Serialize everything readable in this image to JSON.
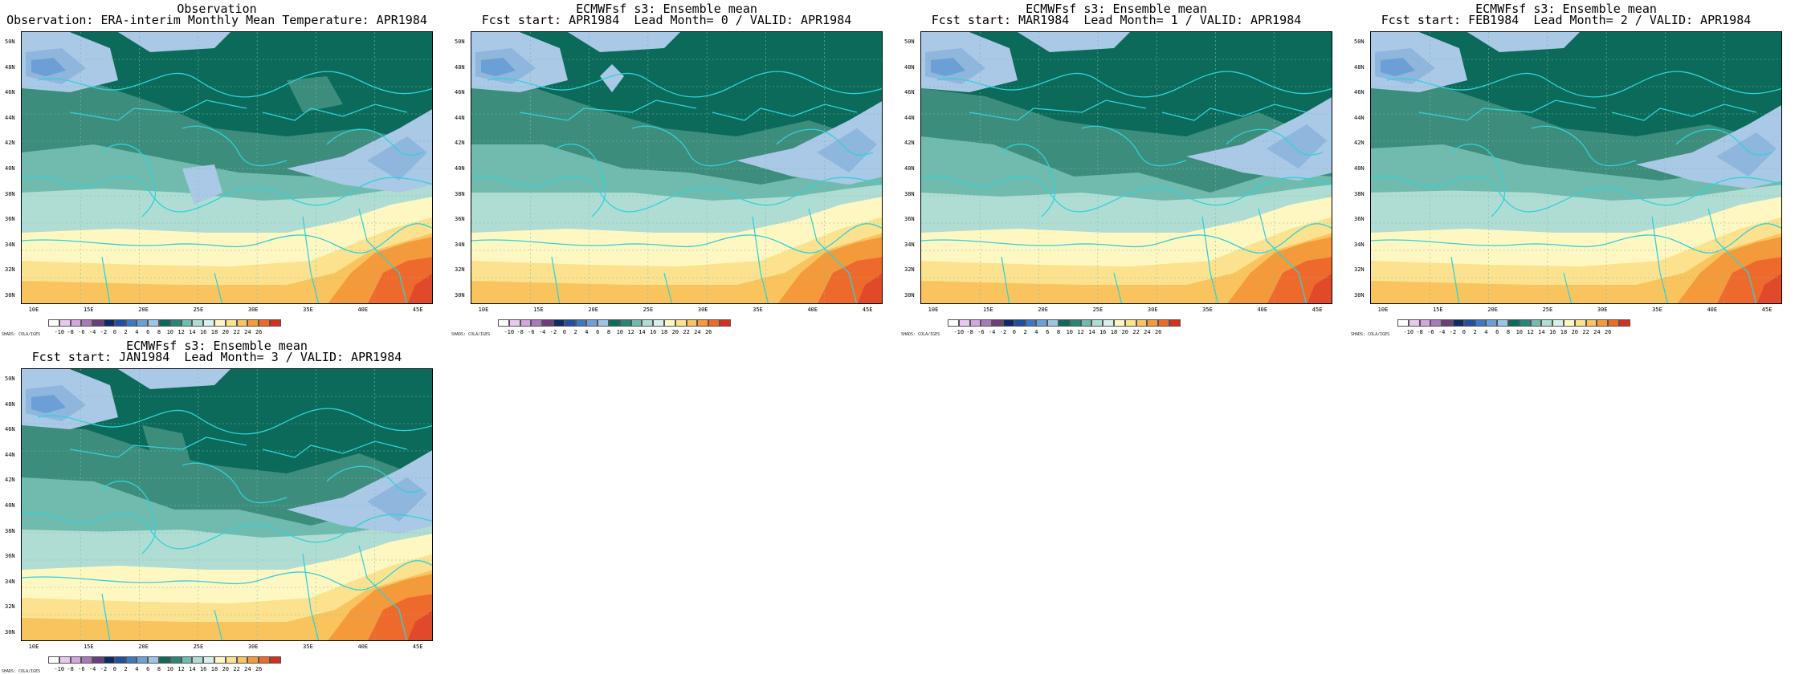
{
  "panels": [
    {
      "title1": "Observation",
      "title2": "Observation: ERA-interim Monthly Mean Temperature: APR1984",
      "variant": 0
    },
    {
      "title1": "ECMWFsf s3: Ensemble mean",
      "title2": "Fcst start: APR1984  Lead Month= 0 / VALID: APR1984",
      "variant": 1
    },
    {
      "title1": "ECMWFsf s3: Ensemble mean",
      "title2": "Fcst start: MAR1984  Lead Month= 1 / VALID: APR1984",
      "variant": 2
    },
    {
      "title1": "ECMWFsf s3: Ensemble mean",
      "title2": "Fcst start: FEB1984  Lead Month= 2 / VALID: APR1984",
      "variant": 3
    },
    {
      "title1": "ECMWFsf s3: Ensemble mean",
      "title2": "Fcst start: JAN1984  Lead Month= 3 / VALID: APR1984",
      "variant": 4
    }
  ],
  "y_ticks": [
    "50N",
    "48N",
    "46N",
    "44N",
    "42N",
    "40N",
    "38N",
    "36N",
    "34N",
    "32N",
    "30N"
  ],
  "x_ticks": [
    "10E",
    "15E",
    "20E",
    "25E",
    "30E",
    "35E",
    "40E",
    "45E"
  ],
  "colorbar": {
    "labels": [
      "-10",
      "-8",
      "-6",
      "-4",
      "-2",
      "0",
      "2",
      "4",
      "6",
      "8",
      "10",
      "12",
      "14",
      "16",
      "18",
      "20",
      "22",
      "24",
      "26"
    ],
    "colors": [
      "#ffffff",
      "#e8c8ee",
      "#d3a6de",
      "#a679b8",
      "#6a3d7c",
      "#0d2a66",
      "#1e4fa0",
      "#3d78c1",
      "#6b9fd6",
      "#9cc4e4",
      "#0b6a5a",
      "#2a8578",
      "#71bbae",
      "#b0ddd3",
      "#d9efe9",
      "#fff7c2",
      "#fce28f",
      "#f9c45e",
      "#f59a3b",
      "#ee6a2c",
      "#d3301f"
    ],
    "shads_label": "SHADS: COLA/IGES"
  }
}
